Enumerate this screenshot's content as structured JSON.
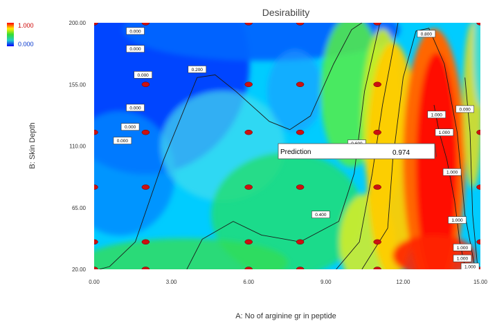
{
  "chart_data": {
    "type": "heatmap",
    "subtype": "contour",
    "title": "Desirability",
    "xlabel": "A: No of arginine gr in peptide",
    "ylabel": "B: Skin Depth",
    "xlim": [
      0,
      15
    ],
    "ylim": [
      20,
      200
    ],
    "x_ticks": [
      "0.00",
      "3.00",
      "6.00",
      "9.00",
      "12.00",
      "15.00"
    ],
    "y_ticks": [
      "20.00",
      "65.00",
      "110.00",
      "155.00",
      "200.00"
    ],
    "colorbar": {
      "max_label": "1.000",
      "min_label": "0.000",
      "high_color": "#ff0000",
      "low_color": "#0000ff"
    },
    "contour_labels": [
      {
        "text": "0.000",
        "x": 1.6,
        "y": 194
      },
      {
        "text": "0.000",
        "x": 1.6,
        "y": 181
      },
      {
        "text": "0.000",
        "x": 1.9,
        "y": 162
      },
      {
        "text": "0.000",
        "x": 1.6,
        "y": 138
      },
      {
        "text": "0.000",
        "x": 1.4,
        "y": 124
      },
      {
        "text": "0.000",
        "x": 1.1,
        "y": 114
      },
      {
        "text": "0.200",
        "x": 4.0,
        "y": 166
      },
      {
        "text": "0.600",
        "x": 10.2,
        "y": 112
      },
      {
        "text": "0.400",
        "x": 8.8,
        "y": 60
      },
      {
        "text": "0.800",
        "x": 12.9,
        "y": 192
      },
      {
        "text": "0.000",
        "x": 14.4,
        "y": 137
      },
      {
        "text": "1.000",
        "x": 13.3,
        "y": 133
      },
      {
        "text": "1.000",
        "x": 13.6,
        "y": 120
      },
      {
        "text": "1.000",
        "x": 13.9,
        "y": 91
      },
      {
        "text": "1.000",
        "x": 14.1,
        "y": 56
      },
      {
        "text": "1.000",
        "x": 14.3,
        "y": 36
      },
      {
        "text": "1.000",
        "x": 14.3,
        "y": 28
      },
      {
        "text": "1.000",
        "x": 14.6,
        "y": 22
      }
    ],
    "design_points": [
      {
        "x": 0,
        "y": 200
      },
      {
        "x": 2,
        "y": 200
      },
      {
        "x": 6,
        "y": 200
      },
      {
        "x": 8,
        "y": 200
      },
      {
        "x": 11,
        "y": 200
      },
      {
        "x": 15,
        "y": 200
      },
      {
        "x": 2,
        "y": 155
      },
      {
        "x": 6,
        "y": 155
      },
      {
        "x": 8,
        "y": 155
      },
      {
        "x": 11,
        "y": 155
      },
      {
        "x": 0,
        "y": 120
      },
      {
        "x": 2,
        "y": 120
      },
      {
        "x": 6,
        "y": 120
      },
      {
        "x": 8,
        "y": 120
      },
      {
        "x": 11,
        "y": 120
      },
      {
        "x": 15,
        "y": 120
      },
      {
        "x": 0,
        "y": 80
      },
      {
        "x": 2,
        "y": 80
      },
      {
        "x": 6,
        "y": 80
      },
      {
        "x": 8,
        "y": 80
      },
      {
        "x": 11,
        "y": 80
      },
      {
        "x": 15,
        "y": 80
      },
      {
        "x": 0,
        "y": 40
      },
      {
        "x": 2,
        "y": 40
      },
      {
        "x": 6,
        "y": 40
      },
      {
        "x": 8,
        "y": 40
      },
      {
        "x": 11,
        "y": 40
      },
      {
        "x": 15,
        "y": 40
      },
      {
        "x": 0,
        "y": 20
      },
      {
        "x": 2,
        "y": 20
      },
      {
        "x": 6,
        "y": 20
      },
      {
        "x": 8,
        "y": 20
      },
      {
        "x": 11,
        "y": 20
      },
      {
        "x": 15,
        "y": 20
      }
    ],
    "design_point_color": "#cc1111",
    "prediction": {
      "label": "Prediction",
      "value": "0.974",
      "x": 13.3,
      "y": 102
    },
    "grid": false
  }
}
